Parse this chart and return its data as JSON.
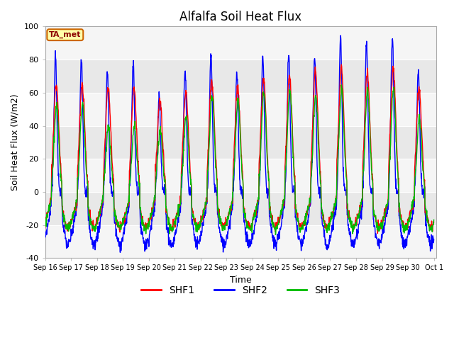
{
  "title": "Alfalfa Soil Heat Flux",
  "xlabel": "Time",
  "ylabel": "Soil Heat Flux (W/m2)",
  "ylim": [
    -40,
    100
  ],
  "yticks": [
    -40,
    -20,
    0,
    20,
    40,
    60,
    80,
    100
  ],
  "legend_labels": [
    "SHF1",
    "SHF2",
    "SHF3"
  ],
  "legend_colors": [
    "#ff0000",
    "#0000ff",
    "#00bb00"
  ],
  "annotation": "TA_met",
  "background_color": "#ffffff",
  "plot_bg_color": "#ffffff",
  "band_colors": [
    "#f5f5f5",
    "#e8e8e8"
  ],
  "title_fontsize": 12,
  "axis_label_fontsize": 9,
  "tick_fontsize": 8,
  "shf2_peak_amps": [
    82,
    82,
    73,
    78,
    60,
    75,
    83,
    71,
    83,
    84,
    82,
    92,
    91,
    95,
    75
  ],
  "shf1_peak_amps": [
    65,
    65,
    63,
    63,
    55,
    60,
    68,
    63,
    68,
    70,
    72,
    75,
    72,
    75,
    62
  ],
  "shf3_peak_amps": [
    52,
    53,
    40,
    40,
    38,
    45,
    58,
    55,
    60,
    62,
    58,
    62,
    62,
    62,
    45
  ]
}
